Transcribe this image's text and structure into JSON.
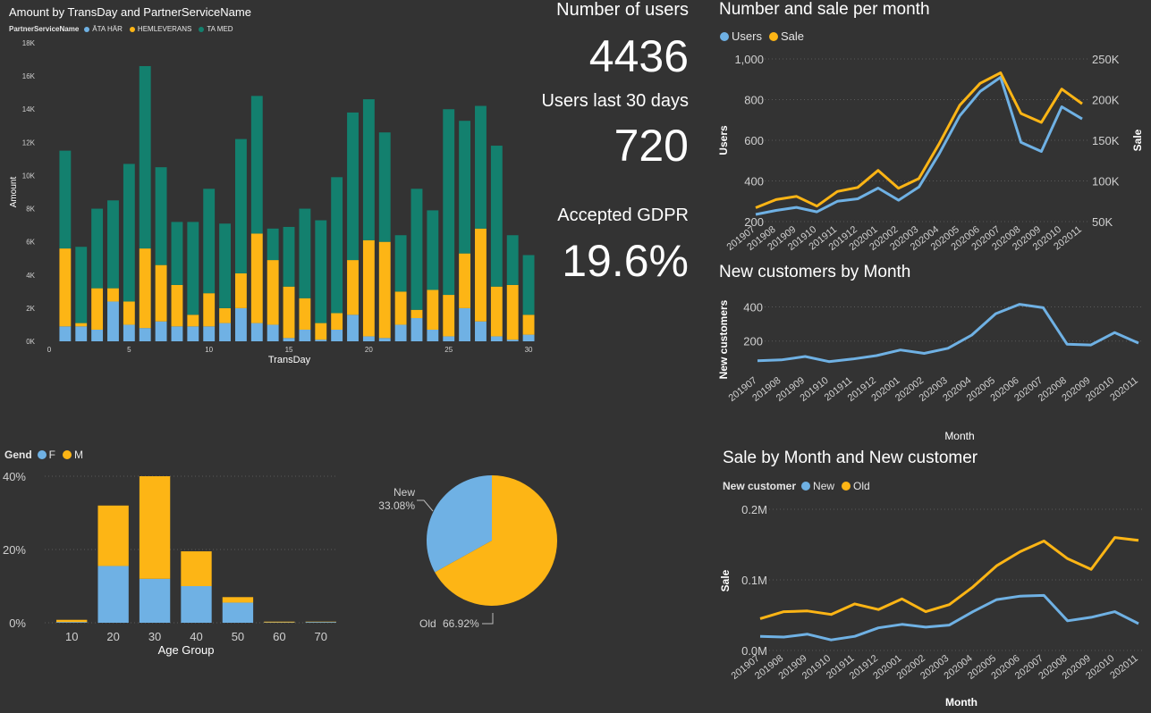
{
  "colors": {
    "blue": "#6FB1E4",
    "yellow": "#FDB515",
    "green": "#13806E",
    "background": "#333333",
    "grid": "#5a5a5a",
    "axis_text": "#d0d0d0"
  },
  "kpis": {
    "users_label": "Number of users",
    "users_value": "4436",
    "users30_label": "Users last 30 days",
    "users30_value": "720",
    "gdpr_label": "Accepted GDPR",
    "gdpr_value": "19.6%"
  },
  "chart_data": [
    {
      "id": "amount_by_day",
      "type": "bar",
      "stacked": true,
      "title": "Amount by TransDay and PartnerServiceName",
      "legend_title": "PartnerServiceName",
      "xlabel": "TransDay",
      "ylabel": "Amount",
      "x_ticks": [
        "0",
        "5",
        "10",
        "15",
        "20",
        "25",
        "30"
      ],
      "y_ticks": [
        "0K",
        "2K",
        "4K",
        "6K",
        "8K",
        "10K",
        "12K",
        "14K",
        "16K",
        "18K"
      ],
      "ylim": [
        0,
        18000
      ],
      "grid": false,
      "categories": [
        1,
        2,
        3,
        4,
        5,
        6,
        7,
        8,
        9,
        10,
        11,
        12,
        13,
        14,
        15,
        16,
        17,
        18,
        19,
        20,
        21,
        22,
        23,
        24,
        25,
        26,
        27,
        28,
        29,
        30
      ],
      "series": [
        {
          "name": "ÄTA HÄR",
          "color": "#6FB1E4",
          "values": [
            900,
            900,
            700,
            2400,
            1000,
            800,
            1200,
            900,
            900,
            900,
            1100,
            2000,
            1100,
            1000,
            200,
            700,
            100,
            700,
            1600,
            300,
            200,
            1000,
            1400,
            700,
            300,
            2000,
            1200,
            300,
            100,
            400
          ]
        },
        {
          "name": "HEMLEVERANS",
          "color": "#FDB515",
          "values": [
            4700,
            200,
            2500,
            800,
            1400,
            4800,
            3400,
            2500,
            700,
            2000,
            900,
            2100,
            5400,
            3900,
            3100,
            1900,
            1000,
            1000,
            3300,
            5800,
            5800,
            2000,
            500,
            2400,
            2500,
            3300,
            5600,
            3000,
            3300,
            1200
          ]
        },
        {
          "name": "TA MED",
          "color": "#13806E",
          "values": [
            5900,
            4600,
            4800,
            5300,
            8300,
            11000,
            5900,
            3800,
            5600,
            6300,
            5100,
            8100,
            8300,
            1900,
            3600,
            5400,
            6200,
            8200,
            8900,
            8500,
            6600,
            3400,
            7300,
            4800,
            11200,
            8000,
            7400,
            8500,
            3000,
            3600
          ]
        }
      ]
    },
    {
      "id": "number_and_sale",
      "type": "line",
      "title": "Number and sale per month",
      "ylabel": "Users",
      "y2label": "Sale",
      "y_ticks": [
        "200",
        "400",
        "600",
        "800",
        "1,000"
      ],
      "ylim": [
        200,
        1000
      ],
      "y2_ticks": [
        "50K",
        "100K",
        "150K",
        "200K",
        "250K"
      ],
      "y2lim": [
        50000,
        250000
      ],
      "x": [
        "201907",
        "201908",
        "201909",
        "201910",
        "201911",
        "201912",
        "202001",
        "202002",
        "202003",
        "202004",
        "202005",
        "202006",
        "202007",
        "202008",
        "202009",
        "202010",
        "202011"
      ],
      "series": [
        {
          "name": "Users",
          "color": "#6FB1E4",
          "axis": "left",
          "values": [
            235,
            255,
            270,
            248,
            300,
            312,
            365,
            305,
            370,
            535,
            720,
            840,
            910,
            590,
            545,
            765,
            705
          ]
        },
        {
          "name": "Sale",
          "color": "#FDB515",
          "axis": "right",
          "values": [
            67000,
            77000,
            81000,
            69000,
            87000,
            92000,
            113000,
            91000,
            103000,
            146000,
            193000,
            220000,
            233000,
            183000,
            172000,
            213000,
            195000
          ]
        }
      ]
    },
    {
      "id": "new_customers",
      "type": "line",
      "title": "New customers by Month",
      "xlabel": "Month",
      "ylabel": "New customers",
      "y_ticks": [
        "200",
        "400"
      ],
      "ylim": [
        0,
        460
      ],
      "x": [
        "201907",
        "201908",
        "201909",
        "201910",
        "201911",
        "201912",
        "202001",
        "202002",
        "202003",
        "202004",
        "202005",
        "202006",
        "202007",
        "202008",
        "202009",
        "202010",
        "202011"
      ],
      "series": [
        {
          "name": "New customers",
          "color": "#6FB1E4",
          "values": [
            85,
            90,
            110,
            80,
            95,
            115,
            148,
            128,
            158,
            235,
            360,
            415,
            395,
            182,
            177,
            250,
            188
          ]
        }
      ]
    },
    {
      "id": "sale_new_customer",
      "type": "line",
      "title": "Sale by Month and New customer",
      "legend_title": "New customer",
      "xlabel": "Month",
      "ylabel": "Sale",
      "y_ticks": [
        "0.0M",
        "0.1M",
        "0.2M"
      ],
      "ylim": [
        0,
        200000
      ],
      "x": [
        "201907",
        "201908",
        "201909",
        "201910",
        "201911",
        "201912",
        "202001",
        "202002",
        "202003",
        "202004",
        "202005",
        "202006",
        "202007",
        "202008",
        "202009",
        "202010",
        "202011"
      ],
      "series": [
        {
          "name": "New",
          "color": "#6FB1E4",
          "values": [
            20000,
            19000,
            23000,
            15000,
            20000,
            32000,
            37000,
            33000,
            36000,
            55000,
            72000,
            77000,
            78000,
            42000,
            47000,
            55000,
            38000
          ]
        },
        {
          "name": "Old",
          "color": "#FDB515",
          "values": [
            45000,
            55000,
            56000,
            51000,
            66000,
            58000,
            73000,
            55000,
            65000,
            90000,
            120000,
            140000,
            155000,
            130000,
            115000,
            160000,
            156000
          ]
        }
      ]
    },
    {
      "id": "gender_age",
      "type": "bar",
      "stacked": true,
      "legend_title": "Gend",
      "xlabel": "Age Group",
      "ylabel": "",
      "y_ticks": [
        "0%",
        "20%",
        "40%"
      ],
      "ylim": [
        0,
        40
      ],
      "categories": [
        "10",
        "20",
        "30",
        "40",
        "50",
        "60",
        "70"
      ],
      "series": [
        {
          "name": "F",
          "color": "#6FB1E4",
          "values": [
            0.2,
            15.5,
            12,
            10,
            5.5,
            0.1,
            0.2
          ]
        },
        {
          "name": "M",
          "color": "#FDB515",
          "values": [
            0.6,
            16.5,
            28,
            9.5,
            1.5,
            0.2,
            0.1
          ]
        }
      ]
    },
    {
      "id": "new_old_pie",
      "type": "pie",
      "slices": [
        {
          "name": "New",
          "label": "33.08%",
          "value": 33.08,
          "color": "#6FB1E4"
        },
        {
          "name": "Old",
          "label": "66.92%",
          "value": 66.92,
          "color": "#FDB515"
        }
      ]
    }
  ]
}
